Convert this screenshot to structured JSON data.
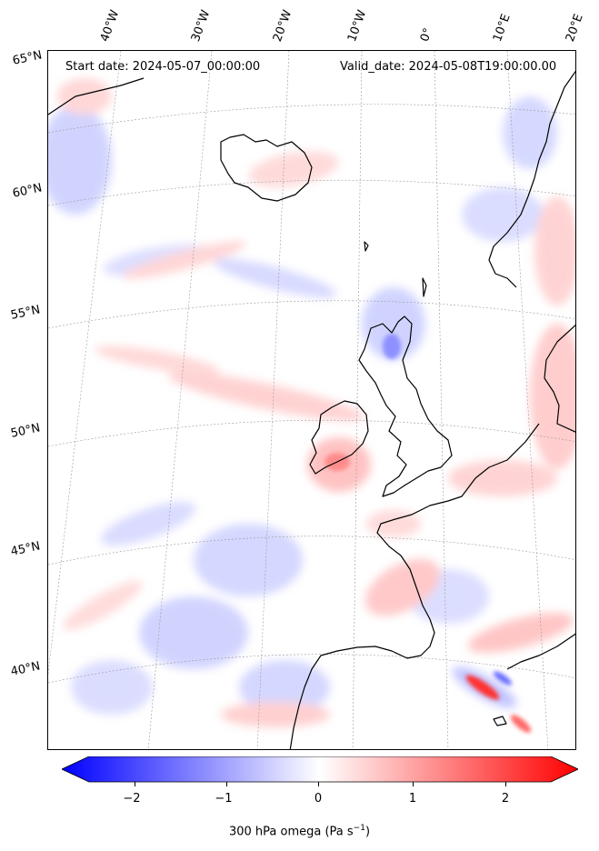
{
  "header": {
    "start_date": "Start date: 2024-05-07_00:00:00",
    "valid_date": "Valid_date: 2024-05-08T19:00:00.00"
  },
  "lon_labels": [
    "40°W",
    "30°W",
    "20°W",
    "10°W",
    "0°",
    "10°E",
    "20°E"
  ],
  "lat_labels": [
    "65°N",
    "60°N",
    "55°N",
    "50°N",
    "45°N",
    "40°N"
  ],
  "colorbar": {
    "ticks": [
      "−2",
      "−1",
      "0",
      "1",
      "2"
    ],
    "label": "300 hPa omega (Pa s",
    "label_superscript": "−1",
    "label_suffix": ")",
    "range": [
      -2.6,
      2.6
    ],
    "colors": {
      "negative": "#0000ff",
      "zero": "#ffffff",
      "positive": "#ff0000"
    }
  },
  "map": {
    "projection": "lambert-conformal",
    "extent_lon": [
      -45,
      20
    ],
    "extent_lat": [
      36,
      65
    ],
    "graticule": "dotted",
    "coastlines": true
  }
}
